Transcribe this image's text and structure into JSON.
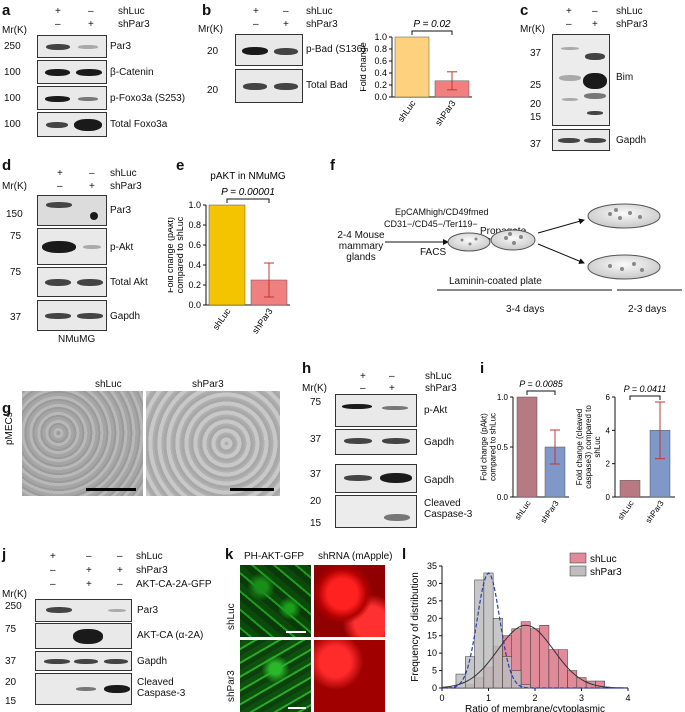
{
  "common": {
    "mr_label": "Mr(K)",
    "shluc": "shLuc",
    "shpar3": "shPar3",
    "plus": "+",
    "minus": "–"
  },
  "panels": {
    "a": {
      "label": "a",
      "markers": [
        "250",
        "100",
        "100",
        "100"
      ],
      "bands": [
        "Par3",
        "β-Catenin",
        "p-Foxo3a (S253)",
        "Total Foxo3a"
      ]
    },
    "b": {
      "label": "b",
      "markers": [
        "20",
        "20"
      ],
      "bands": [
        "p-Bad (S136)",
        "Total Bad"
      ]
    },
    "c": {
      "label": "c",
      "markers": [
        "37",
        "25",
        "20",
        "15",
        "37"
      ],
      "bands": [
        "Bim",
        "Gapdh"
      ]
    },
    "d": {
      "label": "d",
      "markers": [
        "150",
        "75",
        "75",
        "37"
      ],
      "bands": [
        "Par3",
        "p-Akt",
        "Total Akt",
        "Gapdh"
      ],
      "cell_line": "NMuMG"
    },
    "e": {
      "label": "e"
    },
    "f": {
      "label": "f",
      "mice": "2-4 Mouse mammary glands",
      "markers_line1": "EpCAMhigh/CD49fmed",
      "markers_line2": "CD31−/CD45−/Ter119−",
      "facs": "FACS",
      "propagate": "Propagate",
      "plate": "Laminin-coated plate",
      "days1": "3-4 days",
      "days2": "2-3 days"
    },
    "g": {
      "label": "g",
      "row_label": "pMECs"
    },
    "h": {
      "label": "h",
      "markers": [
        "75",
        "37",
        "37",
        "20",
        "15"
      ],
      "bands": [
        "p-Akt",
        "Gapdh",
        "Gapdh",
        "Cleaved Caspase-3"
      ]
    },
    "i": {
      "label": "i"
    },
    "j": {
      "label": "j",
      "row3_label": "AKT-CA-2A-GFP",
      "markers": [
        "250",
        "75",
        "37",
        "20",
        "15"
      ],
      "bands": [
        "Par3",
        "AKT-CA (α-2A)",
        "Gapdh",
        "Cleaved Caspase-3"
      ]
    },
    "k": {
      "label": "k",
      "col1": "PH-AKT-GFP",
      "col2": "shRNA (mApple)",
      "row1": "shLuc",
      "row2": "shPar3"
    },
    "l": {
      "label": "l"
    }
  },
  "chart_data": [
    {
      "id": "b",
      "type": "bar",
      "categories": [
        "shLuc",
        "shPar3"
      ],
      "values": [
        1.0,
        0.27
      ],
      "errors": [
        0,
        0.15
      ],
      "colors": [
        "#fdd17e",
        "#f08080"
      ],
      "ylabel": "Fold change",
      "ylim": [
        0,
        1.0
      ],
      "yticks": [
        "0.0",
        "0.2",
        "0.4",
        "0.6",
        "0.8",
        "1.0"
      ],
      "annotation": "P = 0.02"
    },
    {
      "id": "e",
      "type": "bar",
      "categories": [
        "shLuc",
        "shPar3"
      ],
      "values": [
        1.0,
        0.25
      ],
      "errors": [
        0,
        0.17
      ],
      "colors": [
        "#f5c400",
        "#f08080"
      ],
      "title": "pAKT in NMuMG",
      "ylabel": "Fold change (pAkt) compared to shLuc",
      "ylim": [
        0,
        1.0
      ],
      "yticks": [
        "0.0",
        "0.2",
        "0.4",
        "0.6",
        "0.8",
        "1.0"
      ],
      "annotation": "P = 0.00001"
    },
    {
      "id": "i1",
      "type": "bar",
      "categories": [
        "shLuc",
        "shPar3"
      ],
      "values": [
        1.0,
        0.5
      ],
      "errors": [
        0,
        0.17
      ],
      "colors": [
        "#b87a82",
        "#7f97c9"
      ],
      "ylabel": "Fold change (pAkt) compared to shLuc",
      "ylim": [
        0,
        1.0
      ],
      "yticks": [
        "0.0",
        "0.5",
        "1.0"
      ],
      "annotation": "P = 0.0085"
    },
    {
      "id": "i2",
      "type": "bar",
      "categories": [
        "shLuc",
        "shPar3"
      ],
      "values": [
        1.0,
        4.0
      ],
      "errors": [
        0,
        1.7
      ],
      "colors": [
        "#b87a82",
        "#7f97c9"
      ],
      "ylabel": "Fold change (cleaved caspase3) compared to shLuc",
      "ylim": [
        0,
        6
      ],
      "yticks": [
        "0",
        "2",
        "4",
        "6"
      ],
      "annotation": "P = 0.0411"
    },
    {
      "id": "l",
      "type": "bar",
      "xlabel": "Ratio of membrane/cytoplasmic",
      "ylabel": "Frequency of distribution",
      "xlim": [
        0,
        4
      ],
      "ylim": [
        0,
        35
      ],
      "xticks": [
        "0",
        "1",
        "2",
        "3",
        "4"
      ],
      "yticks": [
        "0",
        "5",
        "10",
        "15",
        "20",
        "25",
        "30",
        "35"
      ],
      "legend_position": "top-right",
      "series": [
        {
          "name": "shLuc",
          "color": "#e08a9a",
          "bins": [
            0.4,
            0.6,
            0.8,
            1.0,
            1.2,
            1.4,
            1.6,
            1.8,
            2.0,
            2.2,
            2.4,
            2.6,
            2.8,
            3.0,
            3.2,
            3.4
          ],
          "values": [
            0,
            1,
            3,
            6,
            12,
            15,
            17,
            19,
            17,
            18,
            11,
            11,
            5,
            3,
            2,
            2
          ]
        },
        {
          "name": "shPar3",
          "color": "#bdbdbd",
          "bins": [
            0.4,
            0.6,
            0.8,
            1.0,
            1.2,
            1.4,
            1.6,
            1.8
          ],
          "values": [
            4,
            9,
            31,
            33,
            20,
            9,
            5,
            1
          ]
        }
      ]
    }
  ]
}
